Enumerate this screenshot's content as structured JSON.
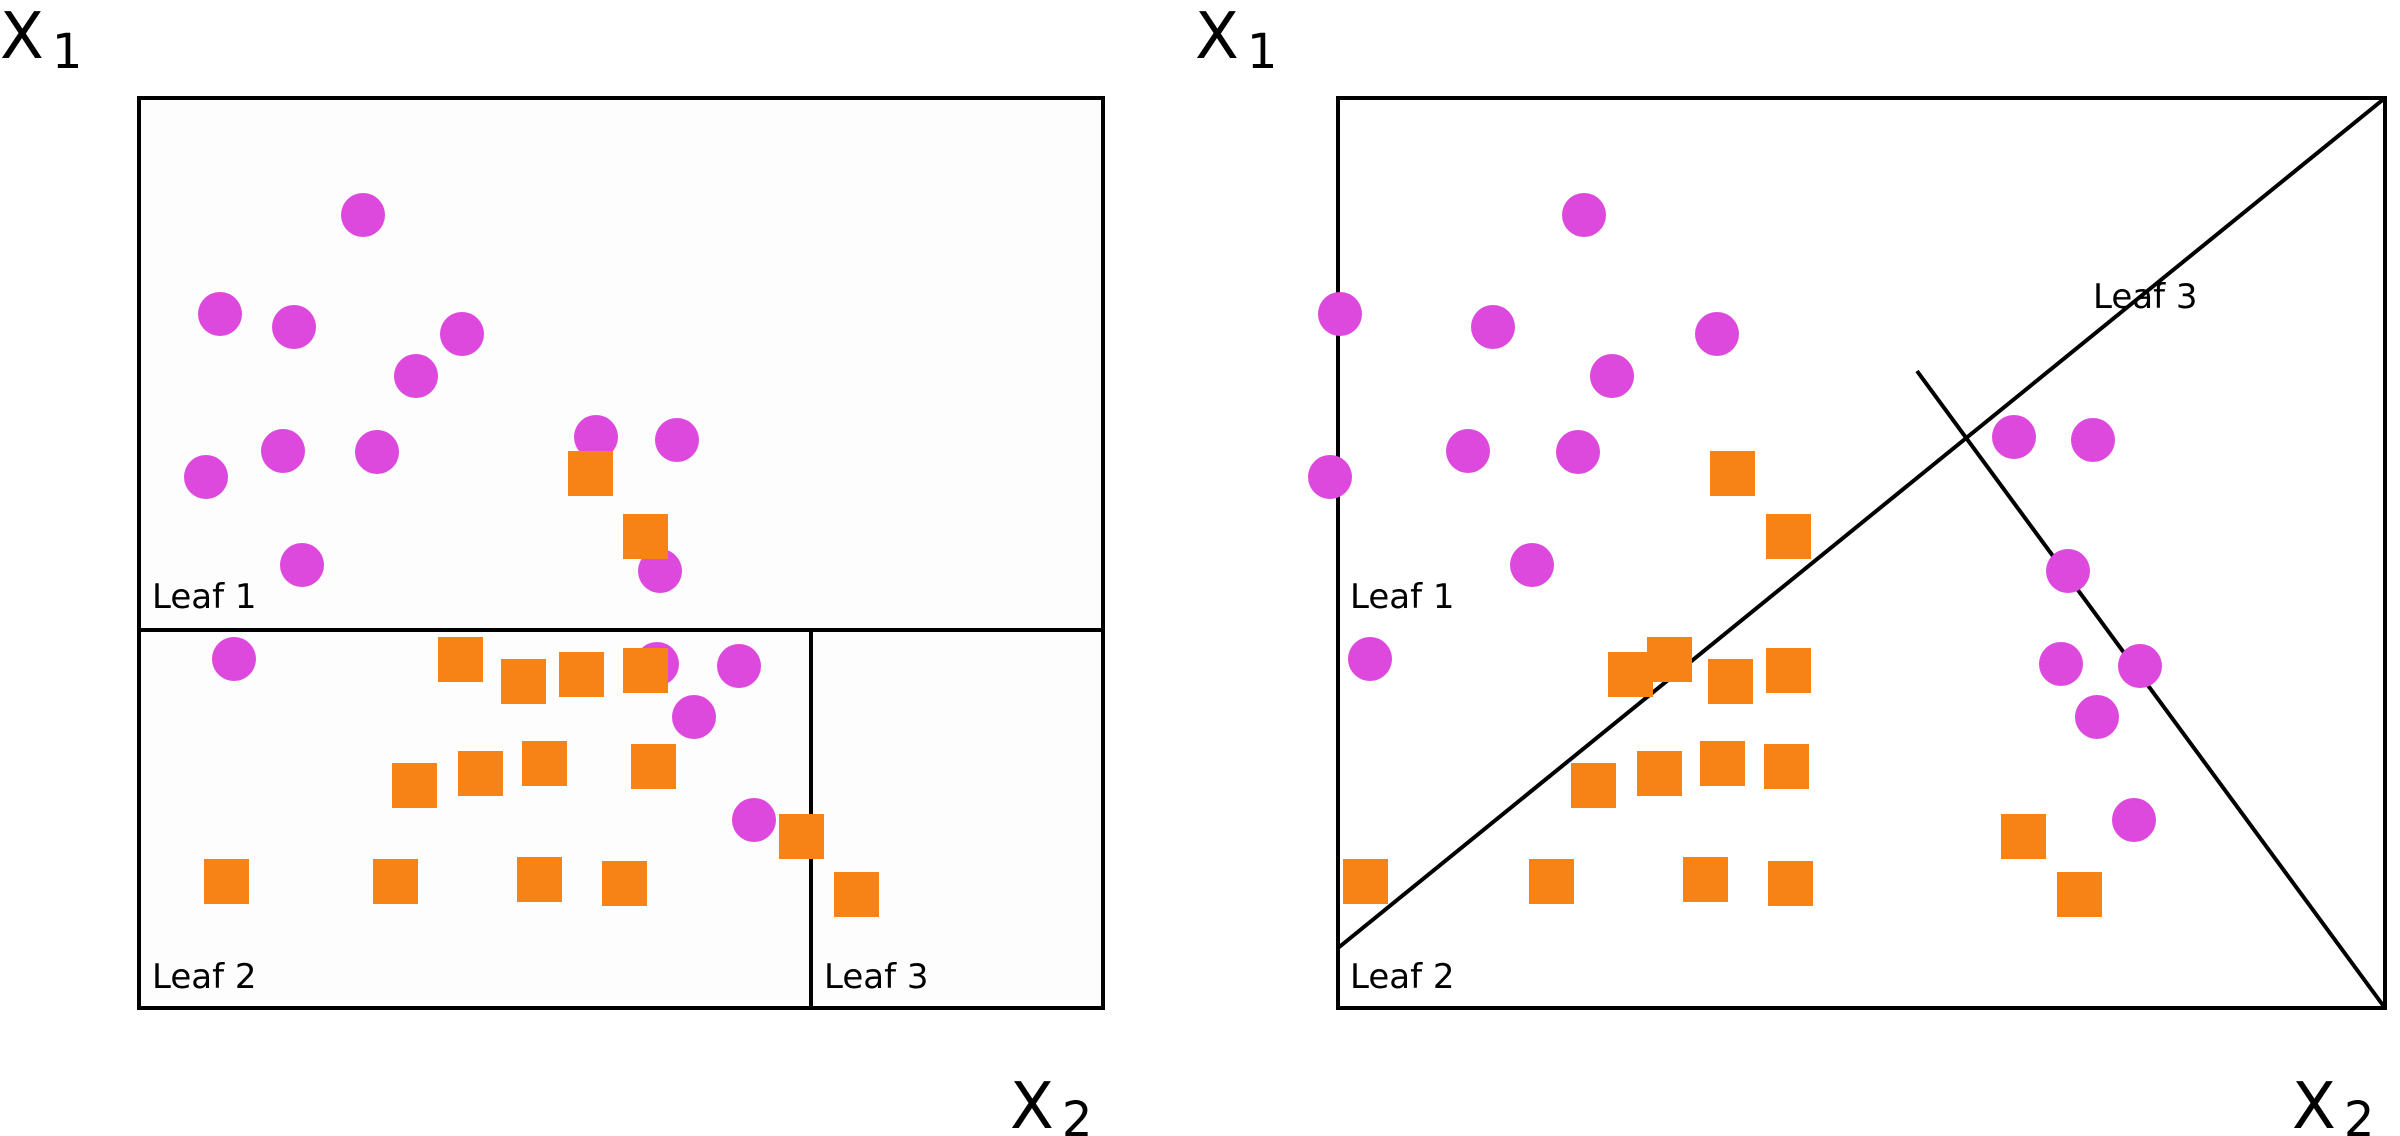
{
  "colors": {
    "class_a": "#dd48dd",
    "class_b": "#f78216",
    "line": "#000000"
  },
  "left_panel": {
    "y_axis": {
      "main": "X",
      "sub": "1"
    },
    "x_axis": {
      "main": "X",
      "sub": "2"
    },
    "leaves": [
      "Leaf 1",
      "Leaf 2",
      "Leaf 3"
    ]
  },
  "right_panel": {
    "y_axis": {
      "main": "X",
      "sub": "1"
    },
    "x_axis": {
      "main": "X",
      "sub": "2"
    },
    "leaves": [
      "Leaf 1",
      "Leaf 2",
      "Leaf 3"
    ]
  }
}
